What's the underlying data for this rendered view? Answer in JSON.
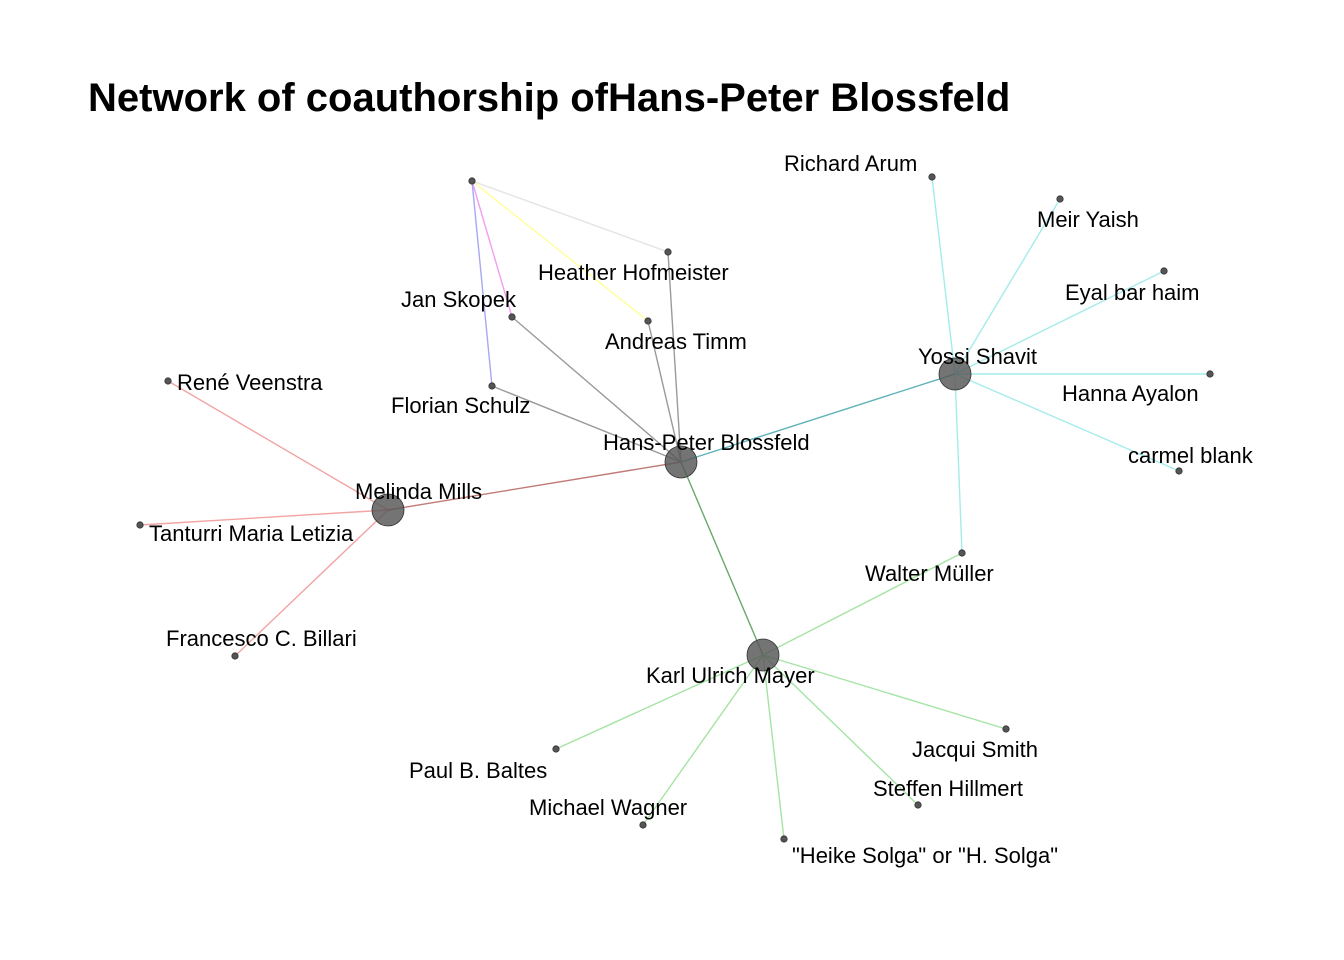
{
  "title": "Network of coauthorship ofHans-Peter Blossfeld",
  "nodes": [
    {
      "id": "blossfeld",
      "label": "Hans-Peter Blossfeld",
      "hub": true
    },
    {
      "id": "shavit",
      "label": "Yossi Shavit",
      "hub": true
    },
    {
      "id": "mills",
      "label": "Melinda Mills",
      "hub": true
    },
    {
      "id": "mayer",
      "label": "Karl Ulrich Mayer",
      "hub": true
    },
    {
      "id": "unlabeled",
      "label": "",
      "hub": false
    },
    {
      "id": "hofmeister",
      "label": "Heather Hofmeister",
      "hub": false
    },
    {
      "id": "skopek",
      "label": "Jan Skopek",
      "hub": false
    },
    {
      "id": "timm",
      "label": "Andreas Timm",
      "hub": false
    },
    {
      "id": "schulz",
      "label": "Florian Schulz",
      "hub": false
    },
    {
      "id": "arum",
      "label": "Richard Arum",
      "hub": false
    },
    {
      "id": "yaish",
      "label": "Meir Yaish",
      "hub": false
    },
    {
      "id": "barhaim",
      "label": "Eyal bar haim",
      "hub": false
    },
    {
      "id": "ayalon",
      "label": "Hanna Ayalon",
      "hub": false
    },
    {
      "id": "blank",
      "label": "carmel blank",
      "hub": false
    },
    {
      "id": "veenstra",
      "label": "René Veenstra",
      "hub": false
    },
    {
      "id": "tanturri",
      "label": "Tanturri Maria Letizia",
      "hub": false
    },
    {
      "id": "billari",
      "label": "Francesco C. Billari",
      "hub": false
    },
    {
      "id": "mueller",
      "label": "Walter Müller",
      "hub": false
    },
    {
      "id": "baltes",
      "label": "Paul B. Baltes",
      "hub": false
    },
    {
      "id": "wagner",
      "label": "Michael Wagner",
      "hub": false
    },
    {
      "id": "solga",
      "label": "\"Heike Solga\" or \"H. Solga\"",
      "hub": false
    },
    {
      "id": "smith",
      "label": "Jacqui Smith",
      "hub": false
    },
    {
      "id": "hillmert",
      "label": "Steffen Hillmert",
      "hub": false
    }
  ],
  "edges": [
    {
      "source": "blossfeld",
      "target": "shavit",
      "color": "#5fb3b9"
    },
    {
      "source": "blossfeld",
      "target": "mills",
      "color": "#c07a78"
    },
    {
      "source": "blossfeld",
      "target": "mayer",
      "color": "#6aa86a"
    },
    {
      "source": "blossfeld",
      "target": "hofmeister",
      "color": "#9a9a9a"
    },
    {
      "source": "blossfeld",
      "target": "skopek",
      "color": "#9a9a9a"
    },
    {
      "source": "blossfeld",
      "target": "timm",
      "color": "#9a9a9a"
    },
    {
      "source": "blossfeld",
      "target": "schulz",
      "color": "#9a9a9a"
    },
    {
      "source": "unlabeled",
      "target": "hofmeister",
      "color": "#e4e4e4"
    },
    {
      "source": "unlabeled",
      "target": "timm",
      "color": "#ffff9a"
    },
    {
      "source": "unlabeled",
      "target": "skopek",
      "color": "#f29cf2"
    },
    {
      "source": "unlabeled",
      "target": "schulz",
      "color": "#a8a8f2"
    },
    {
      "source": "shavit",
      "target": "arum",
      "color": "#a4ecec"
    },
    {
      "source": "shavit",
      "target": "yaish",
      "color": "#a4ecec"
    },
    {
      "source": "shavit",
      "target": "barhaim",
      "color": "#a4ecec"
    },
    {
      "source": "shavit",
      "target": "ayalon",
      "color": "#a4ecec"
    },
    {
      "source": "shavit",
      "target": "blank",
      "color": "#a4ecec"
    },
    {
      "source": "shavit",
      "target": "mueller",
      "color": "#a4ecec"
    },
    {
      "source": "mills",
      "target": "veenstra",
      "color": "#f2a4a4"
    },
    {
      "source": "mills",
      "target": "tanturri",
      "color": "#f2a4a4"
    },
    {
      "source": "mills",
      "target": "billari",
      "color": "#f2a4a4"
    },
    {
      "source": "mayer",
      "target": "mueller",
      "color": "#a4e4a4"
    },
    {
      "source": "mayer",
      "target": "baltes",
      "color": "#a4e4a4"
    },
    {
      "source": "mayer",
      "target": "wagner",
      "color": "#a4e4a4"
    },
    {
      "source": "mayer",
      "target": "solga",
      "color": "#a4e4a4"
    },
    {
      "source": "mayer",
      "target": "smith",
      "color": "#a4e4a4"
    },
    {
      "source": "mayer",
      "target": "hillmert",
      "color": "#a4e4a4"
    }
  ]
}
